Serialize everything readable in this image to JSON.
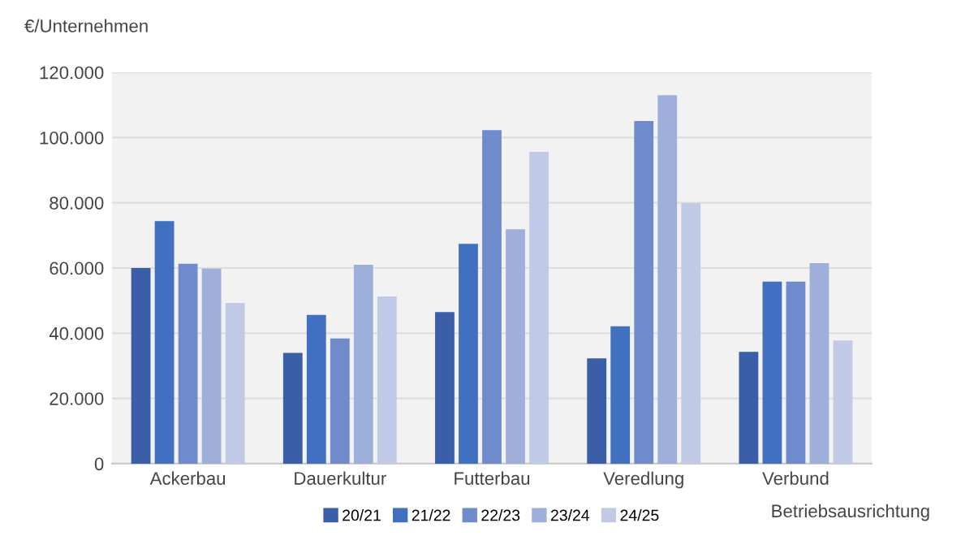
{
  "chart_data": {
    "type": "bar",
    "ylabel": "€/Unternehmen",
    "xlabel": "Betriebsausrichtung",
    "categories": [
      "Ackerbau",
      "Dauerkultur",
      "Futterbau",
      "Veredlung",
      "Verbund"
    ],
    "series": [
      {
        "name": "20/21",
        "color": "#3a5ea8",
        "values": [
          60000,
          34000,
          46500,
          32300,
          34300
        ]
      },
      {
        "name": "21/22",
        "color": "#4170c0",
        "values": [
          74400,
          45600,
          67400,
          42100,
          55800
        ]
      },
      {
        "name": "22/23",
        "color": "#6f8bcc",
        "values": [
          61300,
          38400,
          102300,
          105100,
          55800
        ]
      },
      {
        "name": "23/24",
        "color": "#9eafd9",
        "values": [
          59800,
          61000,
          71900,
          113000,
          61500
        ]
      },
      {
        "name": "24/25",
        "color": "#c0cae6",
        "values": [
          49300,
          51300,
          95600,
          79900,
          37800
        ]
      }
    ],
    "ylim": [
      0,
      120000
    ],
    "yticks": [
      {
        "value": 0,
        "label": "0"
      },
      {
        "value": 20000,
        "label": "20.000"
      },
      {
        "value": 40000,
        "label": "40.000"
      },
      {
        "value": 60000,
        "label": "60.000"
      },
      {
        "value": 80000,
        "label": "80.000"
      },
      {
        "value": 100000,
        "label": "100.000"
      },
      {
        "value": 120000,
        "label": "120.000"
      }
    ],
    "grid": "y",
    "legend": "bottom"
  }
}
